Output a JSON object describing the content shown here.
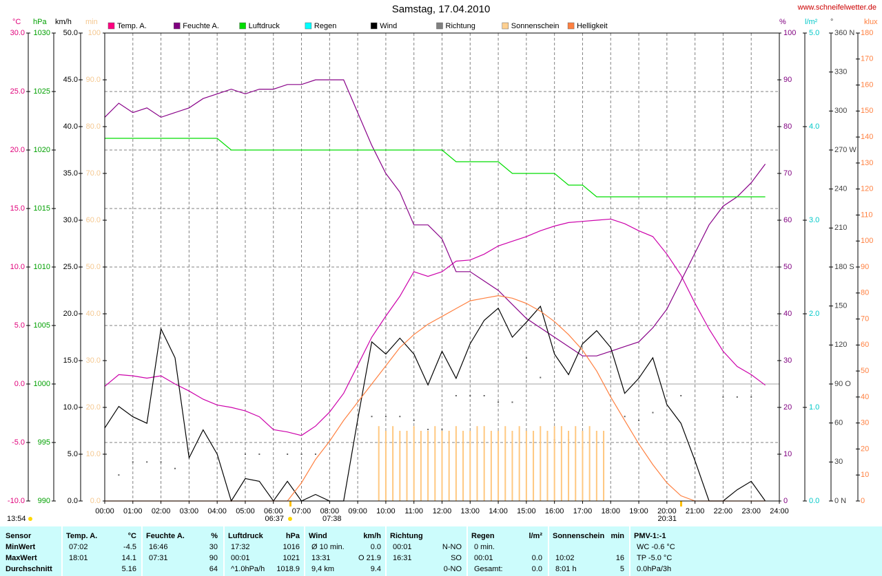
{
  "chart_data": {
    "type": "line",
    "title": "Samstag, 17.04.2010",
    "source": "www.schneifelwetter.de",
    "annotations": [
      "13:54",
      "06:37",
      "07:38",
      "20:31"
    ],
    "xlim": [
      0,
      24
    ],
    "xticks": [
      {
        "value": 0,
        "label": "00:00"
      },
      {
        "value": 1,
        "label": "01:00"
      },
      {
        "value": 2,
        "label": "02:00"
      },
      {
        "value": 3,
        "label": "03:00"
      },
      {
        "value": 4,
        "label": "04:00"
      },
      {
        "value": 5,
        "label": "05:00"
      },
      {
        "value": 6,
        "label": "06:00"
      },
      {
        "value": 7,
        "label": "07:00"
      },
      {
        "value": 8,
        "label": "08:00"
      },
      {
        "value": 9,
        "label": "09:00"
      },
      {
        "value": 10,
        "label": "10:00"
      },
      {
        "value": 11,
        "label": "11:00"
      },
      {
        "value": 12,
        "label": "12:00"
      },
      {
        "value": 13,
        "label": "13:00"
      },
      {
        "value": 14,
        "label": "14:00"
      },
      {
        "value": 15,
        "label": "15:00"
      },
      {
        "value": 16,
        "label": "16:00"
      },
      {
        "value": 17,
        "label": "17:00"
      },
      {
        "value": 18,
        "label": "18:00"
      },
      {
        "value": 19,
        "label": "19:00"
      },
      {
        "value": 20,
        "label": "20:00"
      },
      {
        "value": 21,
        "label": "21:00"
      },
      {
        "value": 22,
        "label": "22:00"
      },
      {
        "value": 23,
        "label": "23:00"
      },
      {
        "value": 24,
        "label": "24:00"
      }
    ],
    "grid": true,
    "grid_axis": "temp",
    "axes": {
      "temp": {
        "unit": "°C",
        "color": "#e0007a",
        "lim": [
          -10,
          30
        ],
        "ticks": [
          {
            "value": -10,
            "label": "-10.0"
          },
          {
            "value": -5,
            "label": "-5.0"
          },
          {
            "value": 0,
            "label": "0.0"
          },
          {
            "value": 5,
            "label": "5.0"
          },
          {
            "value": 10,
            "label": "10.0"
          },
          {
            "value": 15,
            "label": "15.0"
          },
          {
            "value": 20,
            "label": "20.0"
          },
          {
            "value": 25,
            "label": "25.0"
          },
          {
            "value": 30,
            "label": "30.0"
          }
        ]
      },
      "hpa": {
        "unit": "hPa",
        "color": "#00a000",
        "lim": [
          990,
          1030
        ],
        "ticks": [
          990,
          995,
          1000,
          1005,
          1010,
          1015,
          1020,
          1025,
          1030
        ]
      },
      "kmh": {
        "unit": "km/h",
        "color": "#000000",
        "lim": [
          0,
          50
        ],
        "ticks": [
          {
            "value": 0,
            "label": "0.0"
          },
          {
            "value": 5,
            "label": "5.0"
          },
          {
            "value": 10,
            "label": "10.0"
          },
          {
            "value": 15,
            "label": "15.0"
          },
          {
            "value": 20,
            "label": "20.0"
          },
          {
            "value": 25,
            "label": "25.0"
          },
          {
            "value": 30,
            "label": "30.0"
          },
          {
            "value": 35,
            "label": "35.0"
          },
          {
            "value": 40,
            "label": "40.0"
          },
          {
            "value": 45,
            "label": "45.0"
          },
          {
            "value": 50,
            "label": "50.0"
          }
        ]
      },
      "min": {
        "unit": "min",
        "color": "#f5c890",
        "lim": [
          0,
          100
        ],
        "ticks": [
          {
            "value": 0,
            "label": "0.0"
          },
          {
            "value": 10,
            "label": "10.0"
          },
          {
            "value": 20,
            "label": "20.0"
          },
          {
            "value": 30,
            "label": "30.0"
          },
          {
            "value": 40,
            "label": "40.0"
          },
          {
            "value": 50,
            "label": "50.0"
          },
          {
            "value": 60,
            "label": "60.0"
          },
          {
            "value": 70,
            "label": "70.0"
          },
          {
            "value": 80,
            "label": "80.0"
          },
          {
            "value": 90,
            "label": "90.0"
          },
          100
        ]
      },
      "pct": {
        "unit": "%",
        "color": "#800080",
        "lim": [
          0,
          100
        ],
        "ticks": [
          0,
          10,
          20,
          30,
          40,
          50,
          60,
          70,
          80,
          90,
          100
        ]
      },
      "rain": {
        "unit": "l/m²",
        "color": "#00c8c8",
        "lim": [
          0,
          5
        ],
        "ticks": [
          {
            "value": 0,
            "label": "0.0"
          },
          {
            "value": 1,
            "label": "1.0"
          },
          {
            "value": 2,
            "label": "2.0"
          },
          {
            "value": 3,
            "label": "3.0"
          },
          {
            "value": 4,
            "label": "4.0"
          },
          {
            "value": 5,
            "label": "5.0"
          }
        ]
      },
      "deg": {
        "unit": "°",
        "color": "#404040",
        "lim": [
          0,
          360
        ],
        "ticks": [
          {
            "value": 0,
            "label": "0 N"
          },
          30,
          60,
          {
            "value": 90,
            "label": "90 O"
          },
          120,
          150,
          {
            "value": 180,
            "label": "180 S"
          },
          210,
          240,
          {
            "value": 270,
            "label": "270 W"
          },
          300,
          330,
          {
            "value": 360,
            "label": "360 N"
          }
        ]
      },
      "klux": {
        "unit": "klux",
        "color": "#ff8040",
        "lim": [
          0,
          180
        ],
        "ticks": [
          0,
          10,
          20,
          30,
          40,
          50,
          60,
          70,
          80,
          90,
          100,
          110,
          120,
          130,
          140,
          150,
          160,
          170,
          180
        ]
      }
    },
    "x": [
      0,
      0.5,
      1,
      1.5,
      2,
      2.5,
      3,
      3.5,
      4,
      4.5,
      5,
      5.5,
      6,
      6.5,
      7,
      7.5,
      8,
      8.5,
      9,
      9.5,
      10,
      10.5,
      11,
      11.5,
      12,
      12.5,
      13,
      13.5,
      14,
      14.5,
      15,
      15.5,
      16,
      16.5,
      17,
      17.5,
      18,
      18.5,
      19,
      19.5,
      20,
      20.5,
      21,
      21.5,
      22,
      22.5,
      23,
      23.5
    ],
    "series": [
      {
        "name": "Temp. A.",
        "color": "#cc00aa",
        "legend_color": "#ff0080",
        "axis": "temp",
        "style": "line",
        "values": [
          -0.2,
          0.8,
          0.7,
          0.5,
          0.7,
          0,
          -0.6,
          -1.3,
          -1.8,
          -2.0,
          -2.3,
          -2.8,
          -3.9,
          -4.1,
          -4.4,
          -3.6,
          -2.4,
          -0.8,
          1.6,
          4.0,
          5.8,
          7.5,
          9.6,
          9.2,
          9.6,
          10.5,
          10.6,
          11.1,
          11.8,
          12.2,
          12.6,
          13.1,
          13.5,
          13.8,
          13.9,
          14.0,
          14.1,
          13.7,
          13.1,
          12.6,
          11.1,
          9.3,
          6.9,
          4.7,
          2.8,
          1.5,
          0.8,
          -0.1
        ]
      },
      {
        "name": "Feuchte A.",
        "color": "#880088",
        "legend_color": "#800080",
        "axis": "pct",
        "style": "line",
        "values": [
          82,
          85,
          83,
          84,
          82,
          83,
          84,
          86,
          87,
          88,
          87,
          88,
          88,
          89,
          89,
          90,
          90,
          90,
          83,
          76,
          70,
          66,
          59,
          59,
          56,
          49,
          49,
          47,
          45,
          42,
          39,
          37,
          35,
          33,
          31,
          31,
          32,
          33,
          34,
          37,
          41,
          47,
          53,
          59,
          63,
          65,
          68,
          72
        ]
      },
      {
        "name": "Luftdruck",
        "color": "#00dd00",
        "legend_color": "#00dd00",
        "axis": "hpa",
        "style": "line",
        "values": [
          1021,
          1021,
          1021,
          1021,
          1021,
          1021,
          1021,
          1021,
          1021,
          1020,
          1020,
          1020,
          1020,
          1020,
          1020,
          1020,
          1020,
          1020,
          1020,
          1020,
          1020,
          1020,
          1020,
          1020,
          1020,
          1019,
          1019,
          1019,
          1019,
          1018,
          1018,
          1018,
          1018,
          1017,
          1017,
          1016,
          1016,
          1016,
          1016,
          1016,
          1016,
          1016,
          1016,
          1016,
          1016,
          1016,
          1016,
          1016
        ]
      },
      {
        "name": "Regen",
        "color": "#00ffff",
        "legend_color": "#00ffff",
        "axis": "rain",
        "style": "line",
        "values": [
          null,
          null,
          null,
          null,
          null,
          null,
          null,
          null,
          null,
          null,
          null,
          null,
          null,
          null,
          null,
          null,
          null,
          null,
          null,
          null,
          null,
          null,
          null,
          null,
          null,
          null,
          null,
          null,
          null,
          null,
          null,
          null,
          null,
          null,
          null,
          null,
          null,
          null,
          null,
          null,
          null,
          null,
          null,
          null,
          null,
          null,
          null,
          null
        ]
      },
      {
        "name": "Wind",
        "color": "#000000",
        "legend_color": "#000000",
        "axis": "kmh",
        "style": "line",
        "values": [
          7.8,
          10.1,
          9.0,
          8.3,
          18.4,
          15.3,
          4.6,
          7.6,
          5.0,
          0,
          2.4,
          2.1,
          0,
          2.1,
          0,
          0.7,
          0,
          0,
          8.7,
          17.0,
          15.7,
          17.4,
          15.7,
          12.4,
          16.0,
          13.1,
          16.8,
          19.3,
          20.6,
          17.5,
          19.1,
          20.8,
          15.7,
          13.5,
          16.8,
          18.2,
          16.4,
          11.5,
          13.1,
          15.3,
          10.3,
          8.3,
          4.3,
          0,
          0,
          1.2,
          2.1,
          0
        ]
      },
      {
        "name": "Richtung",
        "color": "#606060",
        "legend_color": "#808080",
        "axis": "deg",
        "style": "dots",
        "values": [
          null,
          20,
          30,
          30,
          30,
          25,
          null,
          null,
          null,
          null,
          36,
          36,
          null,
          36,
          36,
          36,
          null,
          null,
          null,
          65,
          65,
          65,
          62,
          55,
          55,
          81,
          81,
          81,
          76,
          76,
          110,
          95,
          47,
          47,
          41,
          null,
          null,
          65,
          62,
          68,
          null,
          81,
          null,
          null,
          80,
          80,
          80,
          null
        ]
      },
      {
        "name": "Sonnenschein",
        "color": "#ffc880",
        "legend_color": "#ffd090",
        "axis": "min",
        "style": "bars",
        "x": [
          9.75,
          10,
          10.25,
          10.5,
          10.75,
          11,
          11.25,
          11.5,
          11.75,
          12,
          12.25,
          12.5,
          12.75,
          13,
          13.25,
          13.5,
          13.75,
          14,
          14.25,
          14.5,
          14.75,
          15,
          15.25,
          15.5,
          15.75,
          16,
          16.25,
          16.5,
          16.75,
          17,
          17.25,
          17.5,
          17.75
        ],
        "values": [
          16,
          15,
          16,
          15,
          15,
          16,
          15,
          15,
          16,
          15,
          15,
          16,
          15,
          15,
          16,
          16,
          15,
          15,
          16,
          15,
          16,
          15,
          15,
          16,
          15,
          16,
          16,
          15,
          16,
          15,
          16,
          15,
          15
        ]
      },
      {
        "name": "Helligkeit",
        "color": "#ff8040",
        "legend_color": "#ff8040",
        "axis": "klux",
        "style": "line",
        "values": [
          0,
          0,
          0,
          0,
          0,
          0,
          0,
          0,
          0,
          0,
          0,
          0,
          0,
          0,
          7,
          16,
          23,
          31,
          38,
          45,
          52,
          59,
          64,
          68,
          71,
          74,
          77,
          78,
          79,
          78,
          76,
          73,
          69,
          64,
          58,
          50,
          40,
          31,
          22,
          14,
          7,
          2,
          0,
          0,
          0,
          0,
          0,
          0
        ]
      }
    ]
  },
  "table": {
    "columns": [
      {
        "title": "Sensor"
      },
      {
        "title": "Temp. A.",
        "unit": "°C"
      },
      {
        "title": "Feuchte A.",
        "unit": "%"
      },
      {
        "title": "Luftdruck",
        "unit": "hPa"
      },
      {
        "title": "Wind",
        "unit": "km/h"
      },
      {
        "title": "Richtung"
      },
      {
        "title": "Regen",
        "unit": "l/m²"
      },
      {
        "title": "Sonnenschein",
        "unit": "min"
      },
      {
        "title": "PMV-1:-1"
      }
    ],
    "rows": [
      {
        "label": "MinWert",
        "cells": [
          [
            "07:02",
            "-4.5"
          ],
          [
            "16:46",
            "30"
          ],
          [
            "17:32",
            "1016"
          ],
          [
            "Ø 10 min.",
            "0.0"
          ],
          [
            "00:01",
            "N-NO"
          ],
          [
            "0 min.",
            null
          ],
          [
            null,
            null
          ],
          [
            "WC -0.6 °C",
            null
          ]
        ]
      },
      {
        "label": "MaxWert",
        "cells": [
          [
            "18:01",
            "14.1"
          ],
          [
            "07:31",
            "90"
          ],
          [
            "00:01",
            "1021"
          ],
          [
            "13:31",
            "O 21.9"
          ],
          [
            "16:31",
            "SO"
          ],
          [
            "00:01",
            "0.0"
          ],
          [
            "10:02",
            "16"
          ],
          [
            "TP -5.0 °C",
            null
          ]
        ]
      },
      {
        "label": "Durchschnitt",
        "cells": [
          [
            null,
            "5.16"
          ],
          [
            null,
            "64"
          ],
          [
            "^1.0hPa/h",
            "1018.9"
          ],
          [
            "9,4 km",
            "9.4"
          ],
          [
            null,
            "0-NO"
          ],
          [
            "Gesamt:",
            "0.0"
          ],
          [
            "8:01 h",
            "5"
          ],
          [
            "0.0hPa/3h",
            null
          ]
        ]
      }
    ]
  }
}
